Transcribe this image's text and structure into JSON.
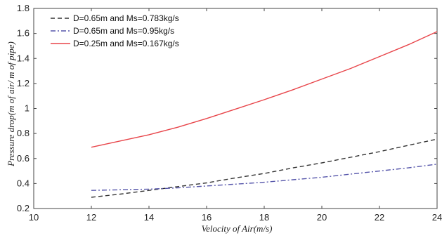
{
  "chart_data": {
    "type": "line",
    "xlabel": "Velocity of Air(m/s)",
    "ylabel": "Pressure drop(m of air/ m of pipe)",
    "xlim": [
      10,
      24
    ],
    "ylim": [
      0.2,
      1.8
    ],
    "xticks": [
      10,
      12,
      14,
      16,
      18,
      20,
      22,
      24
    ],
    "yticks": [
      0.2,
      0.4,
      0.6,
      0.8,
      1,
      1.2,
      1.4,
      1.6,
      1.8
    ],
    "grid": false,
    "legend_position": "top-left",
    "series": [
      {
        "name": "D=0.65m and Ms=0.783kg/s",
        "color": "#333333",
        "dash": "dashed",
        "x": [
          12,
          13,
          14,
          15,
          16,
          17,
          18,
          19,
          20,
          21,
          22,
          23,
          24
        ],
        "y": [
          0.29,
          0.315,
          0.345,
          0.375,
          0.405,
          0.445,
          0.48,
          0.525,
          0.565,
          0.61,
          0.655,
          0.705,
          0.755
        ]
      },
      {
        "name": "D=0.65m and Ms=0.95kg/s",
        "color": "#5555aa",
        "dash": "dashdot",
        "x": [
          12,
          13,
          14,
          15,
          16,
          17,
          18,
          19,
          20,
          21,
          22,
          23,
          24
        ],
        "y": [
          0.345,
          0.35,
          0.355,
          0.365,
          0.38,
          0.395,
          0.41,
          0.43,
          0.45,
          0.475,
          0.5,
          0.525,
          0.555
        ]
      },
      {
        "name": "D=0.25m and Ms=0.167kg/s",
        "color": "#e8454a",
        "dash": "solid",
        "x": [
          12,
          13,
          14,
          15,
          16,
          17,
          18,
          19,
          20,
          21,
          22,
          23,
          24
        ],
        "y": [
          0.69,
          0.74,
          0.79,
          0.85,
          0.92,
          0.995,
          1.07,
          1.15,
          1.235,
          1.32,
          1.415,
          1.51,
          1.615
        ]
      }
    ]
  }
}
